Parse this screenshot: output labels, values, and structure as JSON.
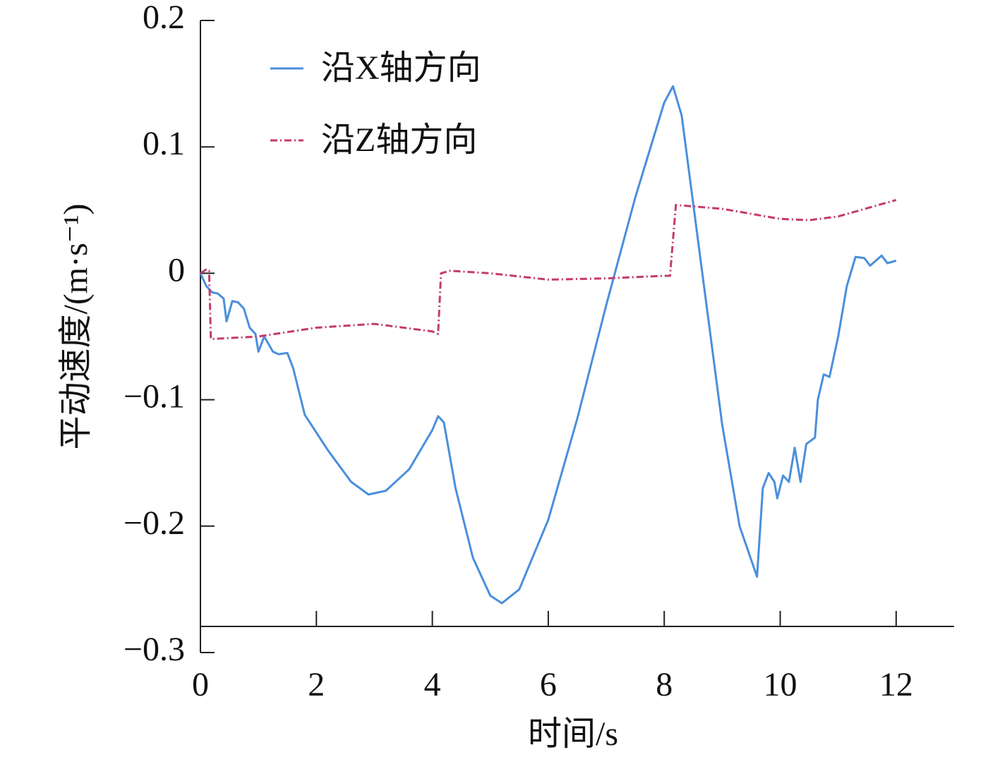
{
  "chart_data": {
    "type": "line",
    "xlabel": "时间/s",
    "ylabel": "平动速度/(m·s⁻¹)",
    "xlim": [
      0,
      13
    ],
    "ylim": [
      -0.3,
      0.2
    ],
    "xticks": [
      0,
      2,
      4,
      6,
      8,
      10,
      12
    ],
    "yticks": [
      {
        "value": -0.3,
        "label": "−0.3"
      },
      {
        "value": -0.2,
        "label": "−0.2"
      },
      {
        "value": -0.1,
        "label": "−0.1"
      },
      0,
      0.1,
      0.2
    ],
    "legend": "upper-left",
    "series": [
      {
        "name": "沿X轴方向",
        "color": "#4a8fdc",
        "style": "solid",
        "x": [
          0,
          0.1,
          0.2,
          0.3,
          0.4,
          0.45,
          0.55,
          0.65,
          0.75,
          0.85,
          0.95,
          1.0,
          1.1,
          1.25,
          1.35,
          1.5,
          1.6,
          1.8,
          2.2,
          2.6,
          2.9,
          3.2,
          3.6,
          4.0,
          4.1,
          4.2,
          4.4,
          4.7,
          5.0,
          5.2,
          5.5,
          6.0,
          6.5,
          7.0,
          7.5,
          8.0,
          8.15,
          8.3,
          8.6,
          9.0,
          9.3,
          9.6,
          9.7,
          9.8,
          9.9,
          9.95,
          10.05,
          10.15,
          10.25,
          10.35,
          10.45,
          10.6,
          10.65,
          10.75,
          10.85,
          11.0,
          11.15,
          11.3,
          11.45,
          11.55,
          11.75,
          11.85,
          12.0
        ],
        "values": [
          0,
          -0.01,
          -0.015,
          -0.016,
          -0.02,
          -0.038,
          -0.022,
          -0.023,
          -0.028,
          -0.043,
          -0.048,
          -0.062,
          -0.05,
          -0.062,
          -0.064,
          -0.063,
          -0.075,
          -0.112,
          -0.14,
          -0.165,
          -0.175,
          -0.172,
          -0.155,
          -0.124,
          -0.113,
          -0.118,
          -0.17,
          -0.225,
          -0.255,
          -0.261,
          -0.25,
          -0.195,
          -0.115,
          -0.025,
          0.06,
          0.135,
          0.148,
          0.125,
          0.02,
          -0.12,
          -0.2,
          -0.24,
          -0.17,
          -0.158,
          -0.165,
          -0.178,
          -0.16,
          -0.165,
          -0.138,
          -0.165,
          -0.135,
          -0.13,
          -0.1,
          -0.08,
          -0.082,
          -0.05,
          -0.01,
          0.013,
          0.012,
          0.006,
          0.014,
          0.008,
          0.01
        ]
      },
      {
        "name": "沿Z轴方向",
        "color": "#c43a6e",
        "style": "dashdot",
        "x": [
          0,
          0.1,
          0.15,
          0.18,
          1.0,
          2.0,
          3.0,
          4.0,
          4.1,
          4.15,
          4.3,
          5.0,
          6.0,
          7.0,
          8.0,
          8.1,
          8.2,
          9.0,
          10.0,
          10.5,
          11.0,
          12.0
        ],
        "values": [
          0,
          0.003,
          0.002,
          -0.052,
          -0.05,
          -0.043,
          -0.04,
          -0.046,
          -0.048,
          0.0,
          0.002,
          0.0,
          -0.005,
          -0.004,
          -0.002,
          -0.002,
          0.054,
          0.051,
          0.043,
          0.042,
          0.045,
          0.058
        ]
      }
    ]
  }
}
